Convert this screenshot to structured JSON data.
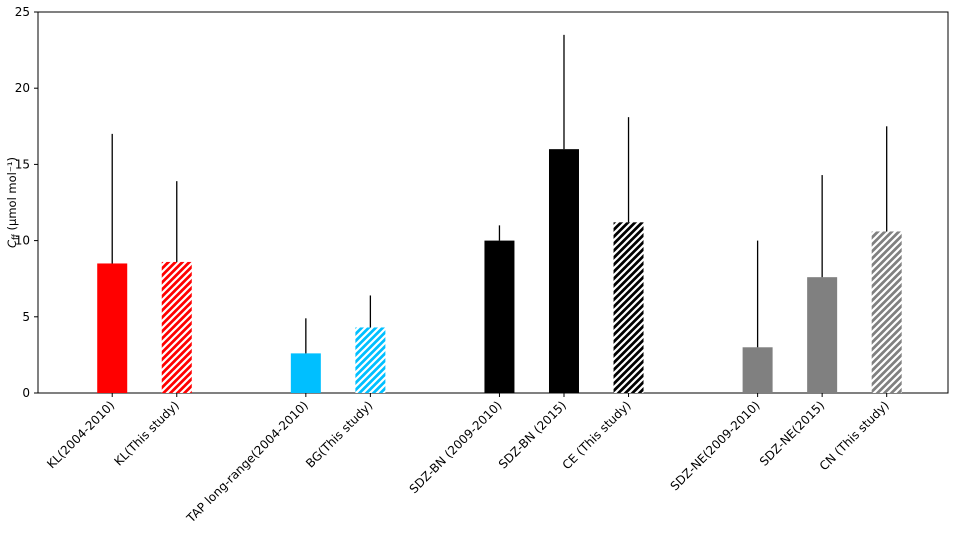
{
  "figure": {
    "background": "#ffffff"
  },
  "chart_data": {
    "type": "bar",
    "title": "",
    "ylabel": {
      "var": "C",
      "sub": "ff",
      "unit": " (µmol mol⁻¹)"
    },
    "ylim": [
      0,
      25
    ],
    "yticks": [
      0,
      5,
      10,
      15,
      20,
      25
    ],
    "xlim": [
      -1.15,
      12.95
    ],
    "grid": false,
    "legend_position": "none",
    "axis_color": "#000000",
    "error_bar_color": "#000000",
    "hatch_stripe_color": "#ffffff",
    "bars": [
      {
        "label": "KL(2004-2010)",
        "x": 0,
        "value": 8.5,
        "err_up": 8.5,
        "color": "#ff0000",
        "hatch": false
      },
      {
        "label": "KL(This study)",
        "x": 1,
        "value": 8.6,
        "err_up": 5.3,
        "color": "#ff0000",
        "hatch": true
      },
      {
        "label": "TAP long-range(2004-2010)",
        "x": 3,
        "value": 2.6,
        "err_up": 2.3,
        "color": "#00bfff",
        "hatch": false
      },
      {
        "label": "BG(This study)",
        "x": 4,
        "value": 4.3,
        "err_up": 2.1,
        "color": "#00bfff",
        "hatch": true
      },
      {
        "label": "SDZ-BN (2009-2010)",
        "x": 6,
        "value": 10.0,
        "err_up": 1.0,
        "color": "#000000",
        "hatch": false
      },
      {
        "label": "SDZ-BN (2015)",
        "x": 7,
        "value": 16.0,
        "err_up": 7.5,
        "color": "#000000",
        "hatch": false
      },
      {
        "label": "CE (This study)",
        "x": 8,
        "value": 11.2,
        "err_up": 6.9,
        "color": "#000000",
        "hatch": true
      },
      {
        "label": "SDZ-NE(2009-2010)",
        "x": 10,
        "value": 3.0,
        "err_up": 7.0,
        "color": "#808080",
        "hatch": false
      },
      {
        "label": "SDZ-NE(2015)",
        "x": 11,
        "value": 7.6,
        "err_up": 6.7,
        "color": "#808080",
        "hatch": false
      },
      {
        "label": "CN (This study)",
        "x": 12,
        "value": 10.6,
        "err_up": 6.9,
        "color": "#808080",
        "hatch": true
      }
    ]
  }
}
